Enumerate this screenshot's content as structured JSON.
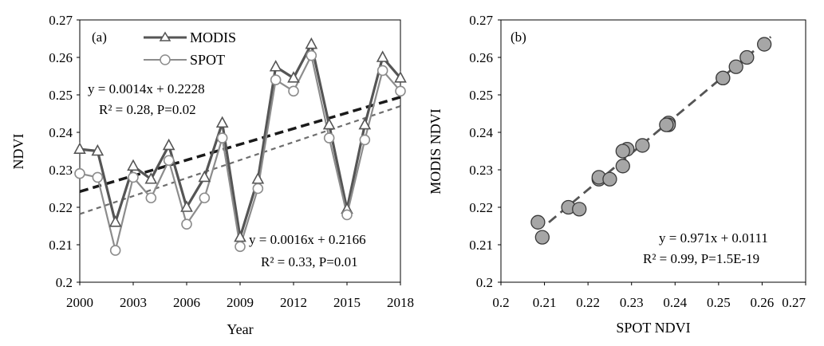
{
  "chart_data": [
    {
      "type": "line",
      "panel_label": "(a)",
      "xlabel": "Year",
      "ylabel": "NDVI",
      "xlim": [
        2000,
        2018
      ],
      "ylim": [
        0.2,
        0.27
      ],
      "xticks": [
        "2000",
        "2003",
        "2006",
        "2009",
        "2012",
        "2015",
        "2018"
      ],
      "yticks": [
        "0.2",
        "0.21",
        "0.22",
        "0.23",
        "0.24",
        "0.25",
        "0.26",
        "0.27"
      ],
      "legend_position": "top-center",
      "x": [
        2000,
        2001,
        2002,
        2003,
        2004,
        2005,
        2006,
        2007,
        2008,
        2009,
        2010,
        2011,
        2012,
        2013,
        2014,
        2015,
        2016,
        2017,
        2018
      ],
      "series": [
        {
          "name": "MODIS",
          "marker": "triangle",
          "color": "#555555",
          "values": [
            0.2355,
            0.235,
            0.216,
            0.231,
            0.2275,
            0.2365,
            0.22,
            0.228,
            0.2425,
            0.212,
            0.2275,
            0.2575,
            0.2545,
            0.2635,
            0.242,
            0.2195,
            0.242,
            0.26,
            0.2545
          ],
          "trend": {
            "slope": 0.0014,
            "intercept": 0.2228,
            "color": "#1a1a1a",
            "label": "y = 0.0014x + 0.2228",
            "stats": "R² = 0.28, P=0.02"
          }
        },
        {
          "name": "SPOT",
          "marker": "circle",
          "color": "#8c8c8c",
          "values": [
            0.229,
            0.228,
            0.2085,
            0.228,
            0.2225,
            0.2325,
            0.2155,
            0.2225,
            0.2385,
            0.2095,
            0.225,
            0.254,
            0.251,
            0.2605,
            0.2385,
            0.218,
            0.238,
            0.2565,
            0.251
          ],
          "trend": {
            "slope": 0.0016,
            "intercept": 0.2166,
            "color": "#6e6e6e",
            "label": "y = 0.0016x + 0.2166",
            "stats": "R² = 0.33, P=0.01"
          }
        }
      ]
    },
    {
      "type": "scatter",
      "panel_label": "(b)",
      "xlabel": "SPOT NDVI",
      "ylabel": "MODIS NDVI",
      "xlim": [
        0.2,
        0.27
      ],
      "ylim": [
        0.2,
        0.27
      ],
      "xticks": [
        "0.2",
        "0.21",
        "0.22",
        "0.23",
        "0.24",
        "0.25",
        "0.26",
        "0.27"
      ],
      "yticks": [
        "0.2",
        "0.21",
        "0.22",
        "0.23",
        "0.24",
        "0.25",
        "0.26",
        "0.27"
      ],
      "points_x": [
        0.229,
        0.228,
        0.2085,
        0.228,
        0.2225,
        0.2325,
        0.2155,
        0.2225,
        0.2385,
        0.2095,
        0.225,
        0.254,
        0.251,
        0.2605,
        0.2385,
        0.218,
        0.238,
        0.2565,
        0.251
      ],
      "points_y": [
        0.2355,
        0.235,
        0.216,
        0.231,
        0.2275,
        0.2365,
        0.22,
        0.228,
        0.2425,
        0.212,
        0.2275,
        0.2575,
        0.2545,
        0.2635,
        0.242,
        0.2195,
        0.242,
        0.26,
        0.2545
      ],
      "point_color": "#a6a6a6",
      "fit": {
        "slope": 0.971,
        "intercept": 0.0111,
        "x_range": [
          0.211,
          0.262
        ],
        "color": "#555555"
      },
      "equation": "y = 0.971x + 0.0111",
      "stats": "R² = 0.99, P=1.5E-19"
    }
  ]
}
